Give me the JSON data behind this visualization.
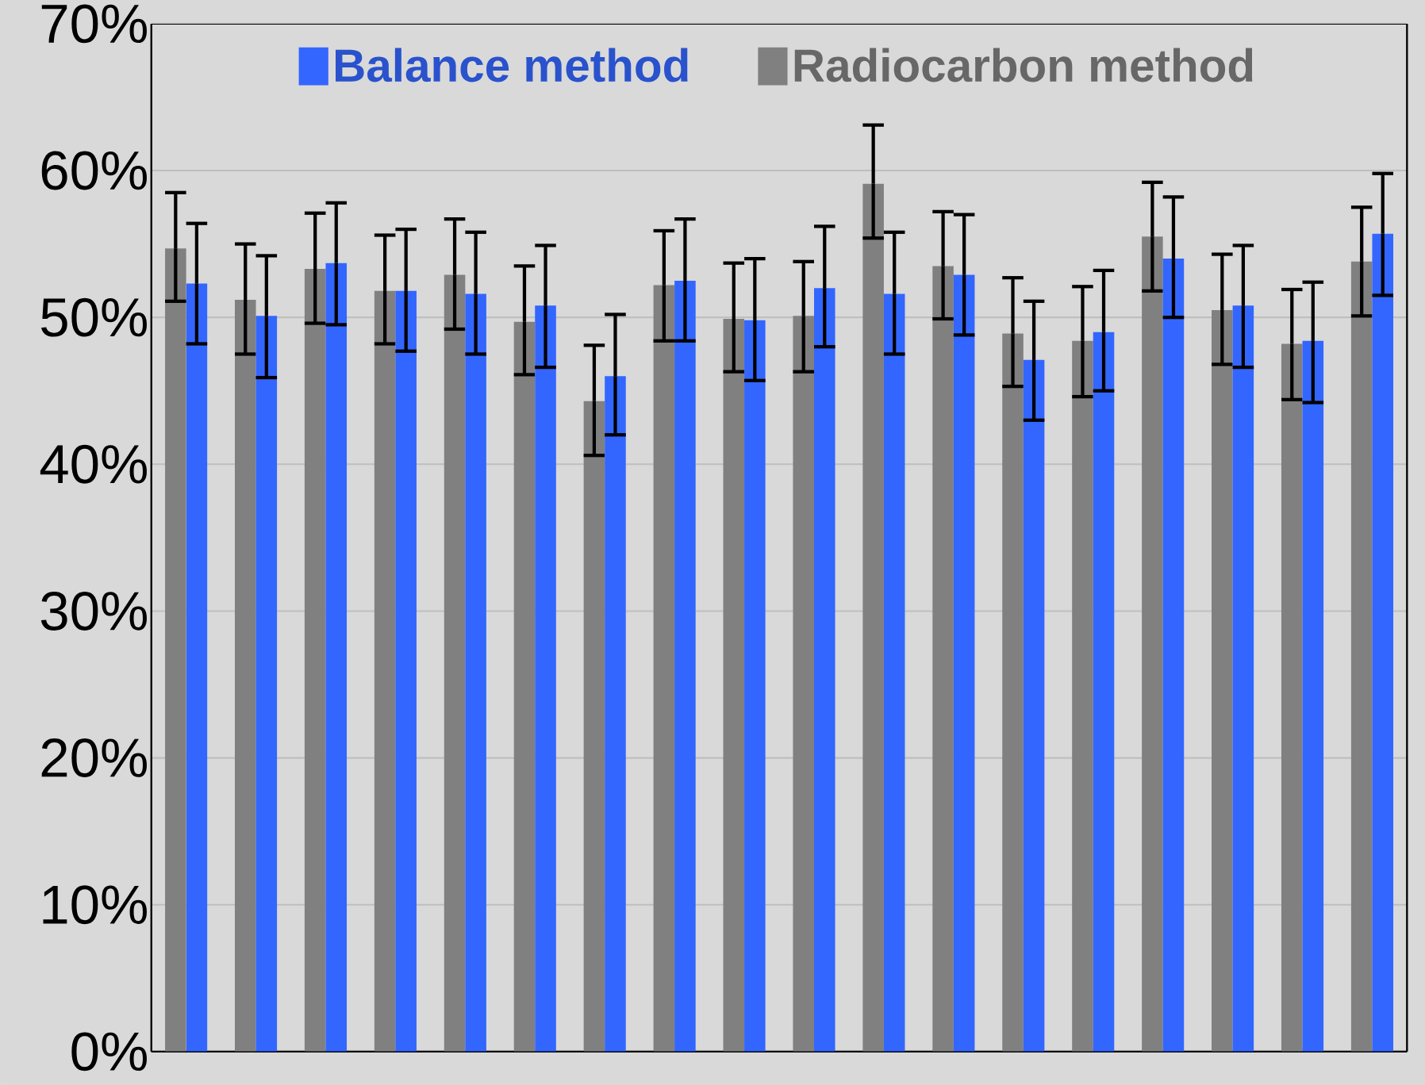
{
  "chart_data": {
    "type": "bar",
    "categories": [
      null,
      null,
      null,
      null,
      null,
      null,
      null,
      null,
      null,
      null,
      null,
      null,
      null,
      null,
      null,
      null,
      null,
      null
    ],
    "series": [
      {
        "name": "Radiocarbon method",
        "color": "#808080",
        "values": [
          54.7,
          51.2,
          53.3,
          51.8,
          52.9,
          49.7,
          44.3,
          52.2,
          49.9,
          50.1,
          59.1,
          53.5,
          48.9,
          48.4,
          55.5,
          50.5,
          48.2,
          53.8
        ],
        "errors": [
          [
            51.1,
            58.5
          ],
          [
            47.5,
            55.0
          ],
          [
            49.6,
            57.1
          ],
          [
            48.2,
            55.6
          ],
          [
            49.2,
            56.7
          ],
          [
            46.1,
            53.5
          ],
          [
            40.6,
            48.1
          ],
          [
            48.4,
            55.9
          ],
          [
            46.3,
            53.7
          ],
          [
            46.3,
            53.8
          ],
          [
            55.4,
            63.1
          ],
          [
            49.9,
            57.2
          ],
          [
            45.3,
            52.7
          ],
          [
            44.6,
            52.1
          ],
          [
            51.8,
            59.2
          ],
          [
            46.8,
            54.3
          ],
          [
            44.4,
            51.9
          ],
          [
            50.1,
            57.5
          ]
        ]
      },
      {
        "name": "Balance method",
        "color": "#3366ff",
        "values": [
          52.3,
          50.1,
          53.7,
          51.8,
          51.6,
          50.8,
          46.0,
          52.5,
          49.8,
          52.0,
          51.6,
          52.9,
          47.1,
          49.0,
          54.0,
          50.8,
          48.4,
          55.7
        ],
        "errors": [
          [
            48.2,
            56.4
          ],
          [
            45.9,
            54.2
          ],
          [
            49.5,
            57.8
          ],
          [
            47.7,
            56.0
          ],
          [
            47.5,
            55.8
          ],
          [
            46.6,
            54.9
          ],
          [
            42.0,
            50.2
          ],
          [
            48.4,
            56.7
          ],
          [
            45.7,
            54.0
          ],
          [
            48.0,
            56.2
          ],
          [
            47.5,
            55.8
          ],
          [
            48.8,
            57.0
          ],
          [
            43.0,
            51.1
          ],
          [
            45.0,
            53.2
          ],
          [
            50.0,
            58.2
          ],
          [
            46.6,
            54.9
          ],
          [
            44.2,
            52.4
          ],
          [
            51.5,
            59.8
          ]
        ]
      }
    ],
    "ylim": [
      0,
      70
    ],
    "yticks": [
      {
        "value": 0,
        "label": "0%"
      },
      {
        "value": 10,
        "label": "10%"
      },
      {
        "value": 20,
        "label": "20%"
      },
      {
        "value": 30,
        "label": "30%"
      },
      {
        "value": 40,
        "label": "40%"
      },
      {
        "value": 50,
        "label": "50%"
      },
      {
        "value": 60,
        "label": "60%"
      },
      {
        "value": 70,
        "label": "70%"
      }
    ],
    "grid": "y",
    "legend": "top"
  }
}
